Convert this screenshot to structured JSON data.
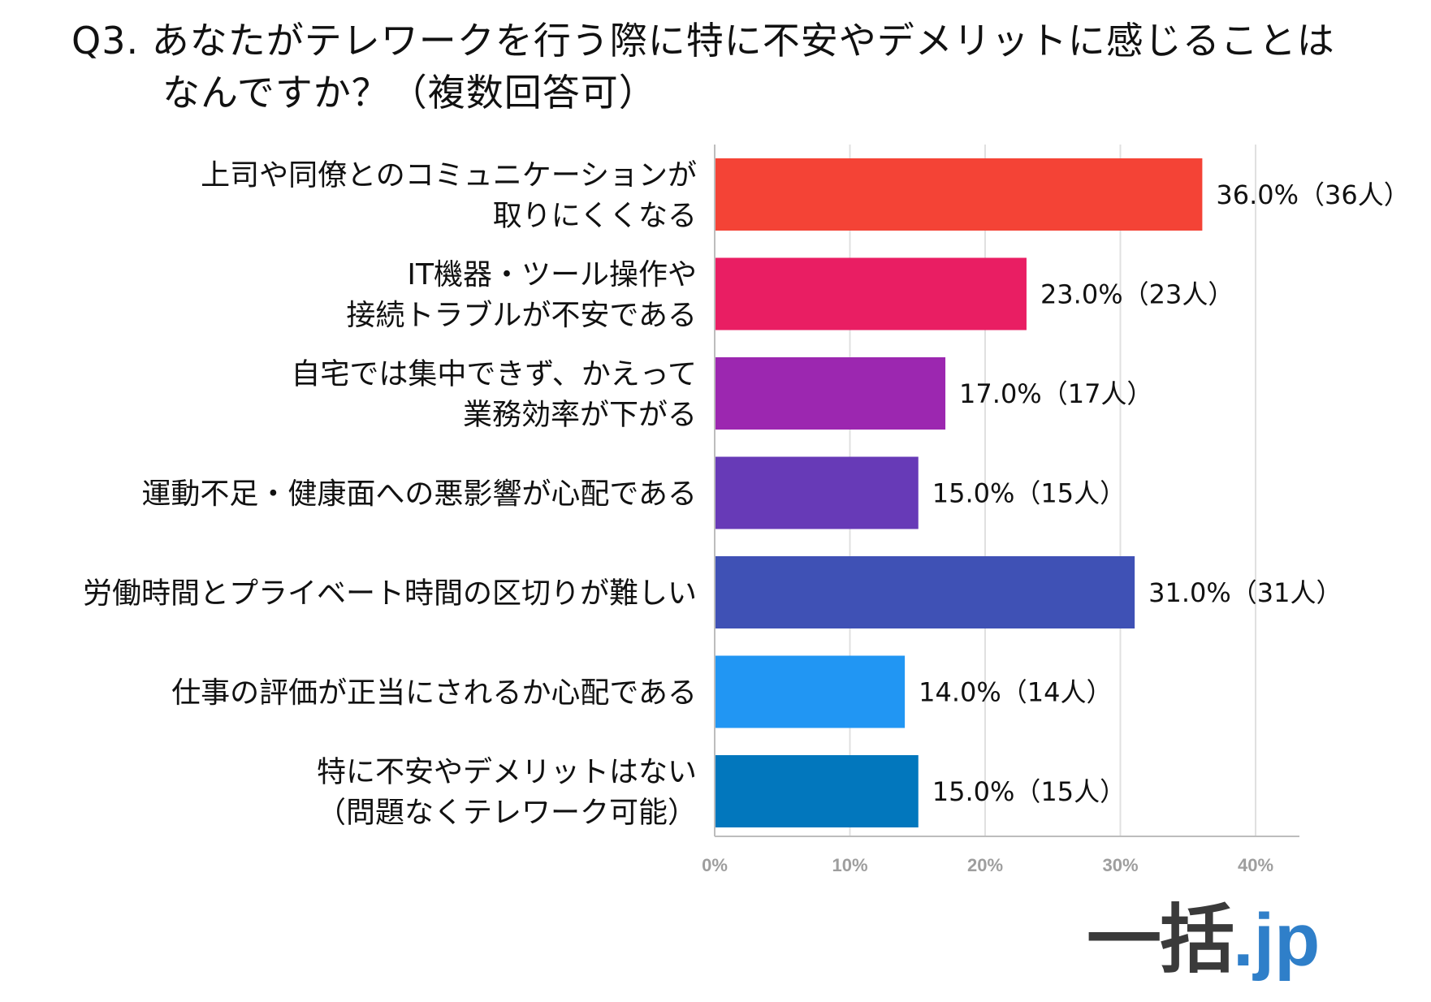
{
  "title": {
    "line1": "Q3. あなたがテレワークを行う際に特に不安やデメリットに感じることは",
    "line2": "なんですか？（複数回答可）"
  },
  "logo": {
    "text_main": "一括",
    "text_suffix": ".jp"
  },
  "chart_data": {
    "type": "bar",
    "orientation": "horizontal",
    "categories": [
      [
        "上司や同僚とのコミュニケーションが",
        "取りにくくなる"
      ],
      [
        "IT機器・ツール操作や",
        "接続トラブルが不安である"
      ],
      [
        "自宅では集中できず、かえって",
        "業務効率が下がる"
      ],
      [
        "運動不足・健康面への悪影響が心配である"
      ],
      [
        "労働時間とプライベート時間の区切りが難しい"
      ],
      [
        "仕事の評価が正当にされるか心配である"
      ],
      [
        "特に不安やデメリットはない",
        "（問題なくテレワーク可能）"
      ]
    ],
    "values": [
      36.0,
      23.0,
      17.0,
      15.0,
      31.0,
      14.0,
      15.0
    ],
    "counts": [
      36,
      23,
      17,
      15,
      31,
      14,
      15
    ],
    "data_labels": [
      "36.0%（36人）",
      "23.0%（23人）",
      "17.0%（17人）",
      "15.0%（15人）",
      "31.0%（31人）",
      "14.0%（14人）",
      "15.0%（15人）"
    ],
    "colors": [
      "#f44336",
      "#e91e63",
      "#9c27b0",
      "#673ab7",
      "#3f51b5",
      "#2196f3",
      "#0277bd"
    ],
    "x_ticks": [
      0,
      10,
      20,
      30,
      40
    ],
    "x_tick_labels": [
      "0%",
      "10%",
      "20%",
      "30%",
      "40%"
    ],
    "xlim": [
      0,
      43.5
    ],
    "grid": true
  }
}
